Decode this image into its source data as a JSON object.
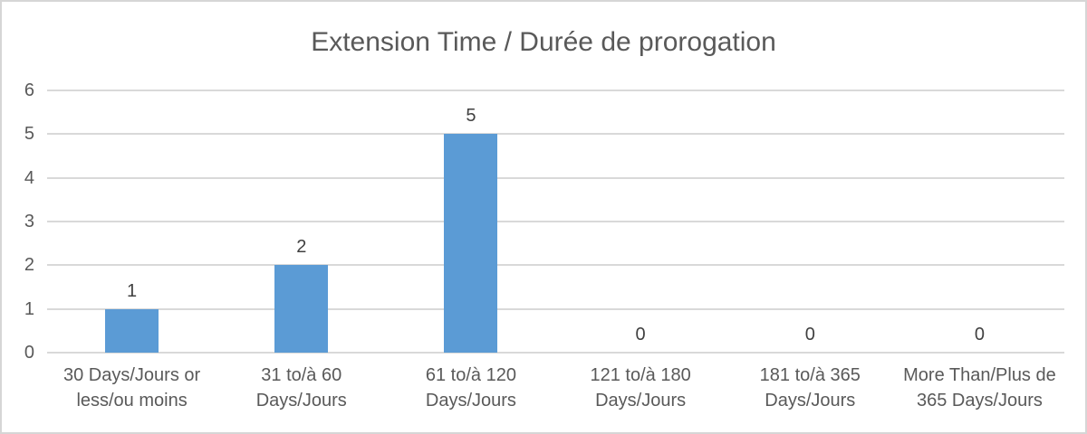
{
  "chart": {
    "colors": {
      "bar": "#5b9bd5",
      "gridline": "#d9d9d9",
      "axis_text": "#595959",
      "data_label": "#404040",
      "title_text": "#595959",
      "frame_border": "#d6d6d6",
      "background": "#ffffff"
    }
  },
  "chart_data": {
    "type": "bar",
    "title": "Extension Time / Durée de prorogation",
    "categories": [
      "30 Days/Jours or less/ou moins",
      "31 to/à 60 Days/Jours",
      "61 to/à 120 Days/Jours",
      "121 to/à 180 Days/Jours",
      "181 to/à 365 Days/Jours",
      "More Than/Plus de 365 Days/Jours"
    ],
    "categories_wrapped": [
      [
        "30 Days/Jours or",
        "less/ou moins"
      ],
      [
        "31 to/à 60",
        "Days/Jours"
      ],
      [
        "61 to/à 120",
        "Days/Jours"
      ],
      [
        "121 to/à 180",
        "Days/Jours"
      ],
      [
        "181 to/à 365",
        "Days/Jours"
      ],
      [
        "More Than/Plus de",
        "365 Days/Jours"
      ]
    ],
    "values": [
      1,
      2,
      5,
      0,
      0,
      0
    ],
    "data_labels": [
      "1",
      "2",
      "5",
      "0",
      "0",
      "0"
    ],
    "xlabel": "",
    "ylabel": "",
    "ylim": [
      0,
      6
    ],
    "yticks": [
      0,
      1,
      2,
      3,
      4,
      5,
      6
    ],
    "grid": "horizontal",
    "legend": "none"
  }
}
